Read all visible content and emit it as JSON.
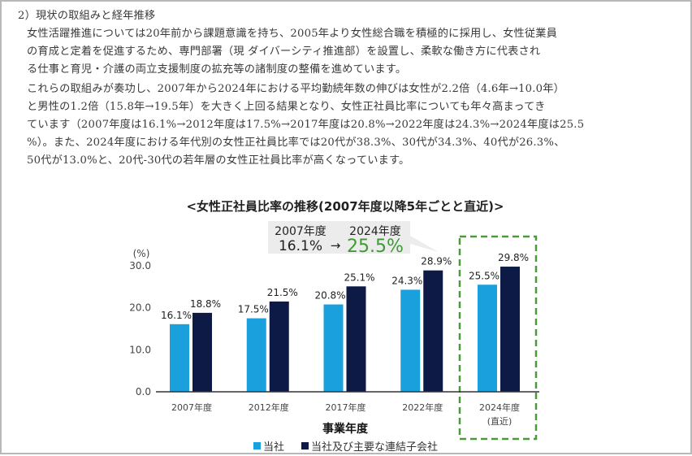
{
  "section": {
    "heading": "2）現状の取組みと経年推移",
    "lines": [
      "女性活躍推進については20年前から課題意識を持ち、2005年より女性総合職を積極的に採用し、女性従業員",
      "の育成と定着を促進するため、専門部署（現 ダイバーシティ推進部）を設置し、柔軟な働き方に代表され",
      "る仕事と育児・介護の両立支援制度の拡充等の諸制度の整備を進めています。",
      "これらの取組みが奏功し、2007年から2024年における平均勤続年数の伸びは女性が2.2倍（4.6年→10.0年）",
      "と男性の1.2倍（15.8年→19.5年）を大きく上回る結果となり、女性正社員比率についても年々高まってき",
      "ています（2007年度は16.1%→2012年度は17.5%→2017年度は20.8%→2022年度は24.3%→2024年度は25.5",
      "%）。また、2024年度における年代別の女性正社員比率では20代が38.3%、30代が34.3%、40代が26.3%、",
      "50代が13.0%と、20代-30代の若年層の女性正社員比率が高くなっています。"
    ]
  },
  "callout": {
    "from_year": "2007年度",
    "to_year": "2024年度",
    "from_value": "16.1%",
    "arrow": "→",
    "to_value": "25.5%"
  },
  "chart_data": {
    "type": "bar",
    "title": "<女性正社員比率の推移(2007年度以降5年ごとと直近)>",
    "categories": [
      "2007年度",
      "2012年度",
      "2017年度",
      "2022年度",
      "2024年度"
    ],
    "category_sublabels": [
      "",
      "",
      "",
      "",
      "(直近)"
    ],
    "series": [
      {
        "name": "当社",
        "values": [
          16.1,
          17.5,
          20.8,
          24.3,
          25.5
        ],
        "labels": [
          "16.1%",
          "17.5%",
          "20.8%",
          "24.3%",
          "25.5%"
        ],
        "color": "#1aa0dc"
      },
      {
        "name": "当社及び主要な連結子会社",
        "values": [
          18.8,
          21.5,
          25.1,
          28.9,
          29.8
        ],
        "labels": [
          "18.8%",
          "21.5%",
          "25.1%",
          "28.9%",
          "29.8%"
        ],
        "color": "#0c1a45"
      }
    ],
    "xlabel": "事業年度",
    "ylabel": "(%)",
    "ylim": [
      0,
      30
    ],
    "yticks": [
      "0.0",
      "10.0",
      "20.0",
      "30.0"
    ],
    "highlight_color": "#4a9a3a",
    "legend_position": "bottom"
  }
}
